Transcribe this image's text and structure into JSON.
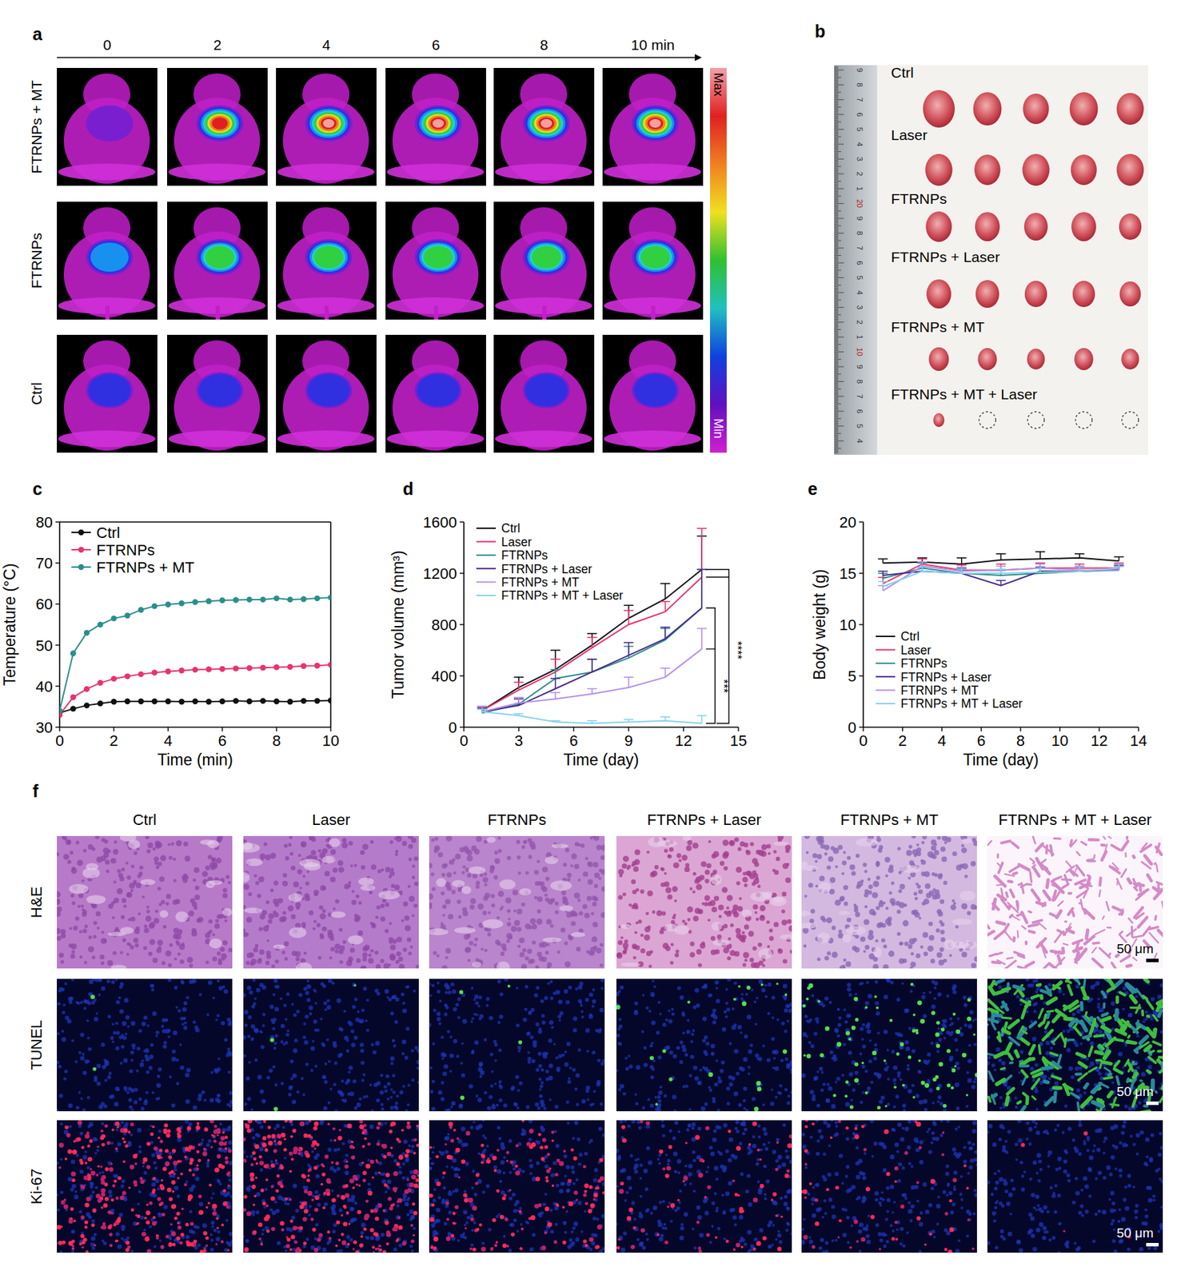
{
  "panel_labels": [
    "a",
    "b",
    "c",
    "d",
    "e",
    "f"
  ],
  "panel_a": {
    "times": [
      "0",
      "2",
      "4",
      "6",
      "8",
      "10 min"
    ],
    "rows": [
      "FTRNPs + MT",
      "FTRNPs",
      "Ctrl"
    ],
    "colorbar": [
      "Max",
      "Min"
    ]
  },
  "panel_b": {
    "ruler_labels": [
      9,
      8,
      7,
      6,
      5,
      4,
      3,
      2,
      1,
      20,
      9,
      8,
      7,
      6,
      5,
      4,
      3,
      2,
      1,
      10,
      9,
      8,
      7,
      6,
      5,
      4
    ],
    "groups": [
      "Ctrl",
      "Laser",
      "FTRNPs",
      "FTRNPs + Laser",
      "FTRNPs + MT",
      "FTRNPs + MT + Laser"
    ]
  },
  "chart_data": [
    {
      "type": "line",
      "xlabel": "Time (min)",
      "ylabel": "Temperature (°C)",
      "x": [
        0,
        0.5,
        1,
        1.5,
        2,
        2.5,
        3,
        3.5,
        4,
        4.5,
        5,
        5.5,
        6,
        6.5,
        7,
        7.5,
        8,
        8.5,
        9,
        9.5,
        10
      ],
      "xlim": [
        0,
        10
      ],
      "xticks": [
        0,
        2,
        4,
        6,
        8,
        10
      ],
      "ylim": [
        30,
        80
      ],
      "yticks": [
        30,
        40,
        50,
        60,
        70,
        80
      ],
      "legend": "upper left",
      "marker": "circle",
      "series": [
        {
          "name": "Ctrl",
          "color": "#111111",
          "values": [
            33.5,
            34.5,
            35.3,
            35.8,
            36.2,
            36.3,
            36.3,
            36.3,
            36.3,
            36.2,
            36.3,
            36.2,
            36.3,
            36.4,
            36.3,
            36.4,
            36.3,
            36.2,
            36.4,
            36.4,
            36.5
          ]
        },
        {
          "name": "FTRNPs",
          "color": "#e8336e",
          "values": [
            33,
            37.3,
            39.3,
            40.8,
            41.8,
            42.4,
            42.9,
            43.3,
            43.6,
            43.8,
            44.0,
            44.1,
            44.2,
            44.3,
            44.4,
            44.5,
            44.6,
            44.7,
            44.9,
            45.0,
            45.2
          ]
        },
        {
          "name": "FTRNPs + MT",
          "color": "#2a8f8c",
          "values": [
            34,
            48,
            53,
            55,
            56.5,
            57.2,
            58.6,
            59.5,
            59.9,
            60.2,
            60.5,
            60.7,
            60.9,
            61.0,
            61.1,
            61.1,
            61.4,
            61.1,
            61.2,
            61.4,
            61.6
          ]
        }
      ]
    },
    {
      "type": "line",
      "xlabel": "Time (day)",
      "ylabel": "Tumor volume (mm³)",
      "x": [
        1,
        3,
        5,
        7,
        9,
        11,
        13
      ],
      "xlim": [
        0,
        15
      ],
      "xticks": [
        0,
        3,
        6,
        9,
        12,
        15
      ],
      "ylim": [
        0,
        1600
      ],
      "yticks": [
        0,
        400,
        800,
        1200,
        1600
      ],
      "legend": "upper left",
      "annotations": [
        "***",
        "****"
      ],
      "series": [
        {
          "name": "Ctrl",
          "color": "#111111",
          "values": [
            130,
            310,
            450,
            640,
            850,
            1000,
            1230
          ],
          "errors": [
            30,
            80,
            150,
            90,
            100,
            120,
            260
          ]
        },
        {
          "name": "Laser",
          "color": "#e8336e",
          "values": [
            130,
            290,
            430,
            620,
            800,
            900,
            1170
          ],
          "errors": [
            30,
            60,
            100,
            80,
            110,
            80,
            380
          ]
        },
        {
          "name": "FTRNPs",
          "color": "#2a8f8c",
          "values": [
            110,
            180,
            380,
            430,
            540,
            680,
            930
          ],
          "errors": [
            30,
            50,
            70,
            100,
            90,
            90,
            300
          ]
        },
        {
          "name": "FTRNPs + Laser",
          "color": "#4a2a8c",
          "values": [
            120,
            170,
            300,
            430,
            560,
            690,
            930
          ],
          "errors": [
            30,
            50,
            80,
            100,
            100,
            90,
            300
          ]
        },
        {
          "name": "FTRNPs + MT",
          "color": "#b590ea",
          "values": [
            120,
            190,
            220,
            260,
            310,
            390,
            610
          ],
          "errors": [
            40,
            40,
            50,
            40,
            80,
            70,
            160
          ]
        },
        {
          "name": "FTRNPs + MT + Laser",
          "color": "#85d3ee",
          "values": [
            120,
            90,
            40,
            30,
            40,
            50,
            30
          ],
          "errors": [
            20,
            15,
            10,
            20,
            20,
            30,
            60
          ]
        }
      ]
    },
    {
      "type": "line",
      "xlabel": "Time (day)",
      "ylabel": "Body weight (g)",
      "x": [
        1,
        3,
        5,
        7,
        9,
        11,
        13
      ],
      "xlim": [
        0,
        14
      ],
      "xticks": [
        0,
        2,
        4,
        6,
        8,
        10,
        12,
        14
      ],
      "ylim": [
        0,
        20
      ],
      "yticks": [
        0,
        5,
        10,
        15,
        20
      ],
      "legend": "lower left",
      "series": [
        {
          "name": "Ctrl",
          "color": "#111111",
          "values": [
            16.0,
            16.1,
            15.9,
            16.3,
            16.4,
            16.5,
            16.2
          ],
          "errors": [
            0.4,
            0.4,
            0.6,
            0.6,
            0.7,
            0.4,
            0.4
          ]
        },
        {
          "name": "Laser",
          "color": "#e8336e",
          "values": [
            14.0,
            15.9,
            15.3,
            15.3,
            15.5,
            15.5,
            15.5
          ],
          "errors": [
            0.6,
            0.5,
            0.5,
            0.6,
            0.5,
            0.4,
            0.5
          ]
        },
        {
          "name": "FTRNPs",
          "color": "#2a8f8c",
          "values": [
            14.5,
            15.5,
            15.0,
            14.8,
            15.0,
            15.2,
            15.3
          ],
          "errors": [
            0.5,
            0.5,
            0.5,
            0.5,
            0.5,
            0.4,
            0.4
          ]
        },
        {
          "name": "FTRNPs + Laser",
          "color": "#4a2a8c",
          "values": [
            14.8,
            15.2,
            15.0,
            13.8,
            15.2,
            15.2,
            15.4
          ],
          "errors": [
            0.4,
            0.4,
            0.4,
            0.5,
            0.4,
            0.4,
            0.4
          ]
        },
        {
          "name": "FTRNPs + MT",
          "color": "#b590ea",
          "values": [
            13.3,
            15.7,
            15.2,
            15.3,
            15.5,
            15.3,
            15.3
          ],
          "errors": [
            0.5,
            0.4,
            0.4,
            0.4,
            0.4,
            0.4,
            0.4
          ]
        },
        {
          "name": "FTRNPs + MT + Laser",
          "color": "#85d3ee",
          "values": [
            13.7,
            15.2,
            15.0,
            15.0,
            15.1,
            15.2,
            15.5
          ],
          "errors": [
            0.5,
            0.4,
            0.4,
            0.4,
            0.4,
            0.4,
            0.4
          ]
        }
      ]
    }
  ],
  "panel_f": {
    "columns": [
      "Ctrl",
      "Laser",
      "FTRNPs",
      "FTRNPs + Laser",
      "FTRNPs + MT",
      "FTRNPs + MT + Laser"
    ],
    "rows": [
      "H&E",
      "TUNEL",
      "Ki-67"
    ],
    "scale_bar": "50 μm"
  }
}
